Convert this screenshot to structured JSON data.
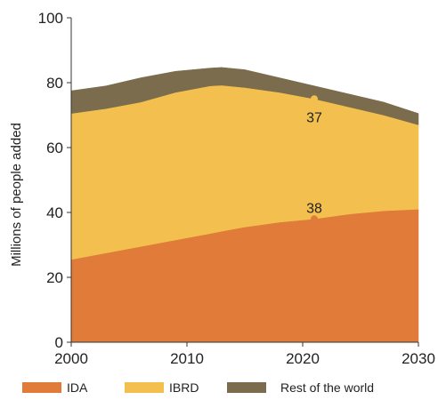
{
  "chart_data": {
    "type": "area",
    "stacked": true,
    "title": "",
    "xlabel": "",
    "ylabel": "Millions of people added",
    "xlim": [
      2000,
      2030
    ],
    "ylim": [
      0,
      100
    ],
    "xticks": [
      2000,
      2010,
      2020,
      2030
    ],
    "yticks": [
      0,
      20,
      40,
      60,
      80,
      100
    ],
    "grid": false,
    "legend_position": "bottom",
    "x": [
      2000,
      2003,
      2006,
      2009,
      2012,
      2013,
      2015,
      2018,
      2021,
      2024,
      2027,
      2030
    ],
    "series": [
      {
        "name": "IDA",
        "color": "#E07B39",
        "values": [
          25.5,
          27.5,
          29.5,
          31.5,
          33.5,
          34.2,
          35.5,
          37,
          38,
          39.5,
          40.5,
          41
        ]
      },
      {
        "name": "IBRD",
        "color": "#F3C04F",
        "values": [
          45,
          44.5,
          44.5,
          45.5,
          45.5,
          45,
          43,
          40,
          37,
          33,
          29.5,
          26
        ]
      },
      {
        "name": "Rest of the world",
        "color": "#7A6C4C",
        "values": [
          7,
          7,
          7.5,
          6.5,
          5.5,
          5.5,
          5.5,
          4.5,
          4,
          4,
          4,
          3.5
        ]
      }
    ],
    "annotations": [
      {
        "text": "37",
        "x": 2021,
        "y": 75,
        "marker_color": "#F3C04F",
        "label_y": 69.5
      },
      {
        "text": "38",
        "x": 2021,
        "y": 38,
        "marker_color": "#E07B39",
        "label_y": 41.5
      }
    ]
  }
}
